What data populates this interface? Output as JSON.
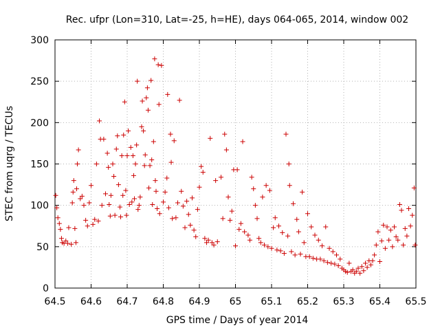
{
  "chart_data": {
    "type": "scatter",
    "title": "Rec. ufpr (Lon=310, Lat=-25, h=HE), days 064-065, 2014, window 002",
    "xlabel": "GPS time / Days of year 2014",
    "ylabel": "STEC from uqrg / TECUs",
    "xlim": [
      64.5,
      65.5
    ],
    "ylim": [
      0,
      300
    ],
    "xticks": [
      "64.5",
      "64.6",
      "64.7",
      "64.8",
      "64.9",
      "65",
      "65.1",
      "65.2",
      "65.3",
      "65.4",
      "65.5"
    ],
    "yticks": [
      "0",
      "50",
      "100",
      "150",
      "200",
      "250",
      "300"
    ],
    "grid": true,
    "marker": "+",
    "color": "#cc0000",
    "series": [
      {
        "name": "STEC",
        "points": [
          [
            64.502,
            112
          ],
          [
            64.505,
            97
          ],
          [
            64.508,
            85
          ],
          [
            64.512,
            78
          ],
          [
            64.515,
            71
          ],
          [
            64.518,
            60
          ],
          [
            64.52,
            55
          ],
          [
            64.525,
            54
          ],
          [
            64.53,
            57
          ],
          [
            64.535,
            54
          ],
          [
            64.538,
            73
          ],
          [
            64.545,
            53
          ],
          [
            64.548,
            103
          ],
          [
            64.55,
            116
          ],
          [
            64.552,
            130
          ],
          [
            64.555,
            72
          ],
          [
            64.558,
            55
          ],
          [
            64.56,
            120
          ],
          [
            64.562,
            150
          ],
          [
            64.565,
            167
          ],
          [
            64.57,
            108
          ],
          [
            64.575,
            111
          ],
          [
            64.58,
            100
          ],
          [
            64.585,
            82
          ],
          [
            64.59,
            75
          ],
          [
            64.595,
            103
          ],
          [
            64.6,
            124
          ],
          [
            64.605,
            77
          ],
          [
            64.61,
            83
          ],
          [
            64.615,
            150
          ],
          [
            64.62,
            81
          ],
          [
            64.623,
            202
          ],
          [
            64.626,
            180
          ],
          [
            64.63,
            100
          ],
          [
            64.635,
            180
          ],
          [
            64.64,
            114
          ],
          [
            64.645,
            163
          ],
          [
            64.648,
            146
          ],
          [
            64.65,
            101
          ],
          [
            64.653,
            87
          ],
          [
            64.655,
            112
          ],
          [
            64.66,
            150
          ],
          [
            64.663,
            135
          ],
          [
            64.666,
            88
          ],
          [
            64.67,
            168
          ],
          [
            64.673,
            184
          ],
          [
            64.676,
            125
          ],
          [
            64.68,
            98
          ],
          [
            64.682,
            86
          ],
          [
            64.685,
            160
          ],
          [
            64.688,
            112
          ],
          [
            64.69,
            185
          ],
          [
            64.693,
            225
          ],
          [
            64.696,
            118
          ],
          [
            64.698,
            88
          ],
          [
            64.7,
            160
          ],
          [
            64.703,
            190
          ],
          [
            64.706,
            101
          ],
          [
            64.71,
            170
          ],
          [
            64.713,
            104
          ],
          [
            64.716,
            160
          ],
          [
            64.718,
            136
          ],
          [
            64.72,
            108
          ],
          [
            64.723,
            150
          ],
          [
            64.726,
            173
          ],
          [
            64.728,
            250
          ],
          [
            64.73,
            95
          ],
          [
            64.733,
            100
          ],
          [
            64.736,
            110
          ],
          [
            64.74,
            195
          ],
          [
            64.742,
            226
          ],
          [
            64.745,
            190
          ],
          [
            64.748,
            148
          ],
          [
            64.75,
            161
          ],
          [
            64.753,
            230
          ],
          [
            64.756,
            242
          ],
          [
            64.758,
            215
          ],
          [
            64.76,
            121
          ],
          [
            64.763,
            148
          ],
          [
            64.766,
            251
          ],
          [
            64.768,
            155
          ],
          [
            64.77,
            101
          ],
          [
            64.773,
            177
          ],
          [
            64.776,
            277
          ],
          [
            64.778,
            130
          ],
          [
            64.78,
            117
          ],
          [
            64.783,
            96
          ],
          [
            64.786,
            270
          ],
          [
            64.788,
            222
          ],
          [
            64.79,
            90
          ],
          [
            64.795,
            269
          ],
          [
            64.8,
            104
          ],
          [
            64.805,
            116
          ],
          [
            64.81,
            133
          ],
          [
            64.812,
            234
          ],
          [
            64.815,
            97
          ],
          [
            64.82,
            186
          ],
          [
            64.822,
            152
          ],
          [
            64.825,
            84
          ],
          [
            64.83,
            178
          ],
          [
            64.835,
            85
          ],
          [
            64.84,
            103
          ],
          [
            64.845,
            227
          ],
          [
            64.85,
            117
          ],
          [
            64.855,
            99
          ],
          [
            64.86,
            73
          ],
          [
            64.865,
            105
          ],
          [
            64.87,
            89
          ],
          [
            64.875,
            76
          ],
          [
            64.88,
            109
          ],
          [
            64.885,
            70
          ],
          [
            64.89,
            62
          ],
          [
            64.895,
            95
          ],
          [
            64.9,
            122
          ],
          [
            64.905,
            147
          ],
          [
            64.91,
            140
          ],
          [
            64.915,
            60
          ],
          [
            64.92,
            55
          ],
          [
            64.925,
            58
          ],
          [
            64.93,
            181
          ],
          [
            64.935,
            55
          ],
          [
            64.94,
            52
          ],
          [
            64.945,
            130
          ],
          [
            64.95,
            56
          ],
          [
            64.96,
            134
          ],
          [
            64.965,
            84
          ],
          [
            64.97,
            186
          ],
          [
            64.975,
            167
          ],
          [
            64.98,
            110
          ],
          [
            64.985,
            82
          ],
          [
            64.99,
            93
          ],
          [
            64.995,
            143
          ],
          [
            65.0,
            51
          ],
          [
            65.005,
            143
          ],
          [
            65.01,
            71
          ],
          [
            65.015,
            78
          ],
          [
            65.02,
            177
          ],
          [
            65.025,
            68
          ],
          [
            65.035,
            64
          ],
          [
            65.04,
            58
          ],
          [
            65.045,
            134
          ],
          [
            65.05,
            120
          ],
          [
            65.055,
            100
          ],
          [
            65.06,
            84
          ],
          [
            65.065,
            60
          ],
          [
            65.07,
            55
          ],
          [
            65.075,
            110
          ],
          [
            65.08,
            52
          ],
          [
            65.085,
            124
          ],
          [
            65.09,
            50
          ],
          [
            65.095,
            118
          ],
          [
            65.1,
            48
          ],
          [
            65.105,
            73
          ],
          [
            65.11,
            85
          ],
          [
            65.115,
            46
          ],
          [
            65.12,
            75
          ],
          [
            65.125,
            45
          ],
          [
            65.13,
            67
          ],
          [
            65.135,
            42
          ],
          [
            65.14,
            186
          ],
          [
            65.145,
            63
          ],
          [
            65.148,
            150
          ],
          [
            65.15,
            124
          ],
          [
            65.155,
            44
          ],
          [
            65.16,
            102
          ],
          [
            65.165,
            40
          ],
          [
            65.17,
            83
          ],
          [
            65.175,
            68
          ],
          [
            65.18,
            41
          ],
          [
            65.185,
            116
          ],
          [
            65.19,
            55
          ],
          [
            65.195,
            38
          ],
          [
            65.2,
            90
          ],
          [
            65.205,
            38
          ],
          [
            65.21,
            74
          ],
          [
            65.215,
            36
          ],
          [
            65.22,
            64
          ],
          [
            65.225,
            35
          ],
          [
            65.23,
            58
          ],
          [
            65.235,
            35
          ],
          [
            65.24,
            51
          ],
          [
            65.245,
            33
          ],
          [
            65.25,
            74
          ],
          [
            65.255,
            31
          ],
          [
            65.26,
            48
          ],
          [
            65.265,
            30
          ],
          [
            65.27,
            44
          ],
          [
            65.275,
            29
          ],
          [
            65.28,
            40
          ],
          [
            65.285,
            27
          ],
          [
            65.29,
            35
          ],
          [
            65.295,
            24
          ],
          [
            65.3,
            22
          ],
          [
            65.305,
            20
          ],
          [
            65.31,
            19
          ],
          [
            65.315,
            30
          ],
          [
            65.32,
            20
          ],
          [
            65.325,
            22
          ],
          [
            65.33,
            18
          ],
          [
            65.335,
            20
          ],
          [
            65.34,
            24
          ],
          [
            65.345,
            18
          ],
          [
            65.35,
            26
          ],
          [
            65.355,
            21
          ],
          [
            65.36,
            30
          ],
          [
            65.365,
            25
          ],
          [
            65.37,
            33
          ],
          [
            65.375,
            28
          ],
          [
            65.38,
            33
          ],
          [
            65.385,
            40
          ],
          [
            65.39,
            52
          ],
          [
            65.395,
            68
          ],
          [
            65.4,
            32
          ],
          [
            65.405,
            57
          ],
          [
            65.41,
            76
          ],
          [
            65.415,
            48
          ],
          [
            65.42,
            74
          ],
          [
            65.425,
            58
          ],
          [
            65.43,
            70
          ],
          [
            65.435,
            50
          ],
          [
            65.44,
            74
          ],
          [
            65.445,
            62
          ],
          [
            65.45,
            58
          ],
          [
            65.455,
            101
          ],
          [
            65.46,
            94
          ],
          [
            65.465,
            52
          ],
          [
            65.47,
            72
          ],
          [
            65.475,
            63
          ],
          [
            65.48,
            96
          ],
          [
            65.485,
            75
          ],
          [
            65.49,
            88
          ],
          [
            65.495,
            121
          ],
          [
            65.498,
            52
          ]
        ]
      }
    ]
  }
}
